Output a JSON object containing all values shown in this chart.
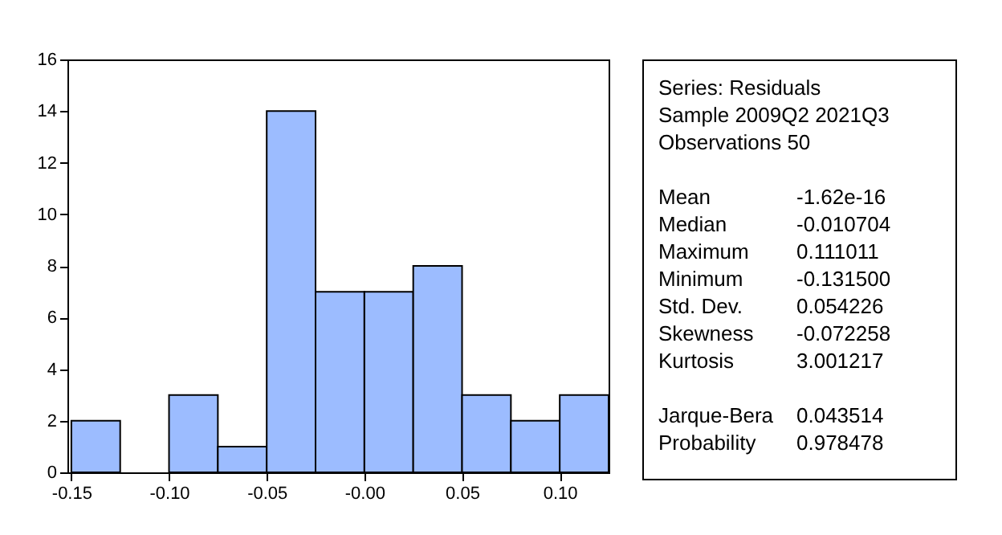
{
  "chart_data": {
    "type": "histogram",
    "bins": [
      -0.15,
      -0.125,
      -0.1,
      -0.075,
      -0.05,
      -0.025,
      0,
      0.025,
      0.05,
      0.075,
      0.1,
      0.125
    ],
    "values": [
      2,
      0,
      3,
      1,
      14,
      7,
      7,
      8,
      3,
      2,
      3
    ],
    "color": "#9cbcff",
    "xlim": [
      -0.152,
      0.125
    ],
    "xticks": [
      -0.15,
      {
        "value": -0.1,
        "label": "-0.10"
      },
      -0.05,
      {
        "value": 0,
        "label": "-0.00"
      },
      0.05,
      {
        "value": 0.1,
        "label": "0.10"
      }
    ],
    "ylim": [
      0,
      16
    ],
    "yticks": [
      0,
      2,
      4,
      6,
      8,
      10,
      12,
      14,
      16
    ],
    "grid": false,
    "annotations": [
      "Series: Residuals",
      "Sample 2009Q2 2021Q3",
      "Observations 50",
      "Mean\t-1.62e-16",
      "Median\t-0.010704",
      "Maximum\t0.111011",
      "Minimum\t-0.131500",
      "Std. Dev.\t0.054226",
      "Skewness\t-0.072258",
      "Kurtosis\t3.001217",
      "Jarque-Bera\t0.043514",
      "Probability\t0.978478"
    ]
  }
}
